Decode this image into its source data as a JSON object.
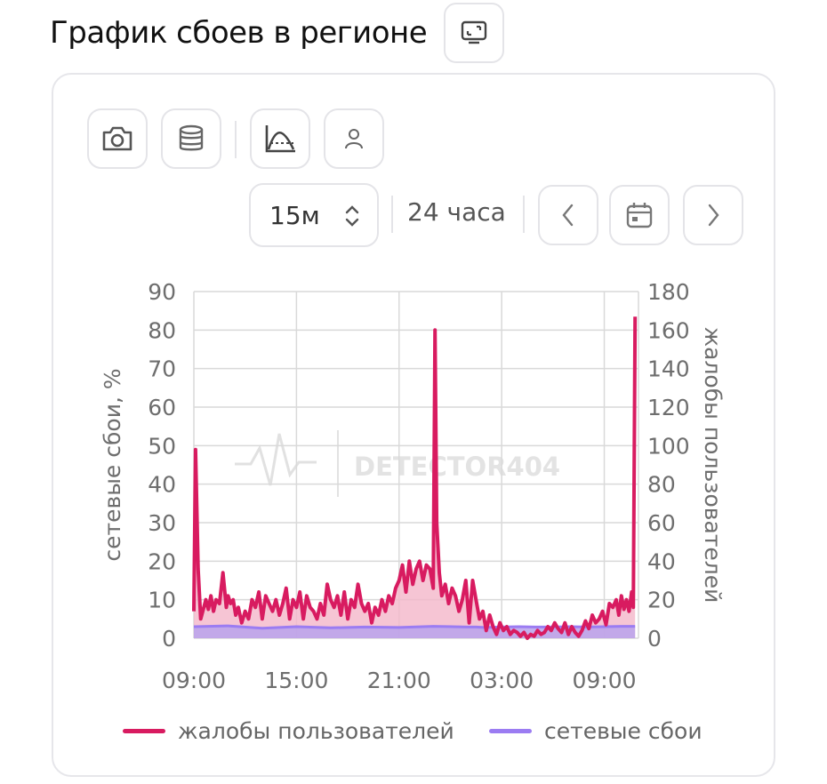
{
  "header": {
    "title": "График сбоев в регионе",
    "screen_icon": "monitor-icon"
  },
  "toolbar": {
    "icons": [
      "camera-icon",
      "database-icon",
      "chart-curve-icon",
      "user-icon"
    ],
    "interval": {
      "value": "15м"
    },
    "range_label": "24 часа",
    "nav_icons": [
      "chevron-left-icon",
      "calendar-icon",
      "chevron-right-icon"
    ]
  },
  "watermark": "DETECTOR404",
  "colors": {
    "complaints": "#d81b60",
    "complaints_fill": "#f4b6c9",
    "network": "#9b7cf2",
    "network_fill": "#b9a2ec",
    "grid": "#d9d9d9",
    "tick": "#6e6e6e"
  },
  "chart_data": {
    "type": "line",
    "xlabel": "",
    "x_ticks": [
      "09:00",
      "15:00",
      "21:00",
      "03:00",
      "09:00"
    ],
    "ylabel_left": "сетевые сбои, %",
    "ylabel_right": "жалобы пользователей",
    "ylim_left": [
      0,
      90
    ],
    "ylim_right": [
      0,
      180
    ],
    "y_ticks_left": [
      0,
      10,
      20,
      30,
      40,
      50,
      60,
      70,
      80,
      90
    ],
    "y_ticks_right": [
      0,
      20,
      40,
      60,
      80,
      100,
      120,
      140,
      160,
      180
    ],
    "grid": true,
    "legend_position": "bottom",
    "x_range_hours": [
      9,
      35
    ],
    "series": [
      {
        "name": "жалобы пользователей",
        "axis": "right",
        "x": [
          9.0,
          9.1,
          9.25,
          9.4,
          9.55,
          9.7,
          9.85,
          10.0,
          10.15,
          10.3,
          10.5,
          10.7,
          10.9,
          11.0,
          11.15,
          11.3,
          11.45,
          11.6,
          11.8,
          12.0,
          12.2,
          12.4,
          12.6,
          12.8,
          13.0,
          13.2,
          13.4,
          13.6,
          13.8,
          14.0,
          14.2,
          14.4,
          14.6,
          14.8,
          15.0,
          15.2,
          15.4,
          15.6,
          15.8,
          16.0,
          16.2,
          16.4,
          16.6,
          16.8,
          17.0,
          17.2,
          17.4,
          17.6,
          17.8,
          18.0,
          18.2,
          18.4,
          18.6,
          18.8,
          19.0,
          19.2,
          19.4,
          19.6,
          19.8,
          20.0,
          20.2,
          20.4,
          20.6,
          20.8,
          21.0,
          21.2,
          21.4,
          21.6,
          21.8,
          22.0,
          22.2,
          22.4,
          22.6,
          22.8,
          23.0,
          23.1,
          23.2,
          23.35,
          23.5,
          23.7,
          23.9,
          24.1,
          24.3,
          24.5,
          24.7,
          24.9,
          25.1,
          25.3,
          25.5,
          25.7,
          25.9,
          26.1,
          26.3,
          26.5,
          26.7,
          26.9,
          27.1,
          27.3,
          27.5,
          27.7,
          27.9,
          28.1,
          28.3,
          28.5,
          28.7,
          28.9,
          29.1,
          29.3,
          29.5,
          29.7,
          29.9,
          30.1,
          30.3,
          30.5,
          30.7,
          30.9,
          31.1,
          31.3,
          31.5,
          31.7,
          31.9,
          32.1,
          32.3,
          32.5,
          32.7,
          32.9,
          33.1,
          33.3,
          33.5,
          33.7,
          33.85,
          34.0,
          34.15,
          34.3,
          34.45,
          34.6,
          34.7,
          34.8
        ],
        "values": [
          14,
          98,
          36,
          10,
          15,
          20,
          15,
          22,
          14,
          20,
          18,
          34,
          16,
          22,
          18,
          20,
          12,
          16,
          8,
          14,
          10,
          20,
          16,
          24,
          10,
          22,
          18,
          14,
          20,
          12,
          18,
          26,
          10,
          20,
          16,
          24,
          10,
          22,
          16,
          14,
          10,
          18,
          12,
          28,
          20,
          16,
          22,
          12,
          24,
          10,
          20,
          16,
          28,
          18,
          14,
          18,
          8,
          16,
          12,
          20,
          14,
          22,
          18,
          26,
          30,
          38,
          24,
          40,
          28,
          36,
          40,
          30,
          38,
          36,
          26,
          160,
          60,
          34,
          22,
          28,
          18,
          26,
          22,
          14,
          20,
          30,
          8,
          30,
          20,
          10,
          14,
          4,
          12,
          6,
          2,
          8,
          4,
          6,
          2,
          4,
          3,
          1,
          3,
          0,
          2,
          1,
          4,
          2,
          3,
          6,
          4,
          8,
          5,
          3,
          8,
          2,
          6,
          3,
          1,
          4,
          9,
          5,
          12,
          8,
          10,
          14,
          7,
          18,
          16,
          20,
          12,
          22,
          15,
          20,
          14,
          24,
          16,
          167
        ]
      },
      {
        "name": "сетевые сбои",
        "axis": "left",
        "x": [
          9.0,
          11.0,
          13.0,
          15.0,
          17.0,
          19.0,
          21.0,
          23.0,
          25.0,
          25.5,
          26.0,
          27.0,
          28.0,
          29.0,
          30.0,
          31.0,
          32.0,
          33.0,
          34.0,
          34.8
        ],
        "values": [
          3.0,
          3.2,
          2.6,
          3.0,
          2.7,
          2.9,
          2.8,
          3.1,
          2.9,
          2.9,
          2.8,
          2.9,
          3.0,
          2.9,
          2.9,
          3.0,
          2.9,
          3.0,
          3.1,
          3.1
        ]
      }
    ]
  }
}
